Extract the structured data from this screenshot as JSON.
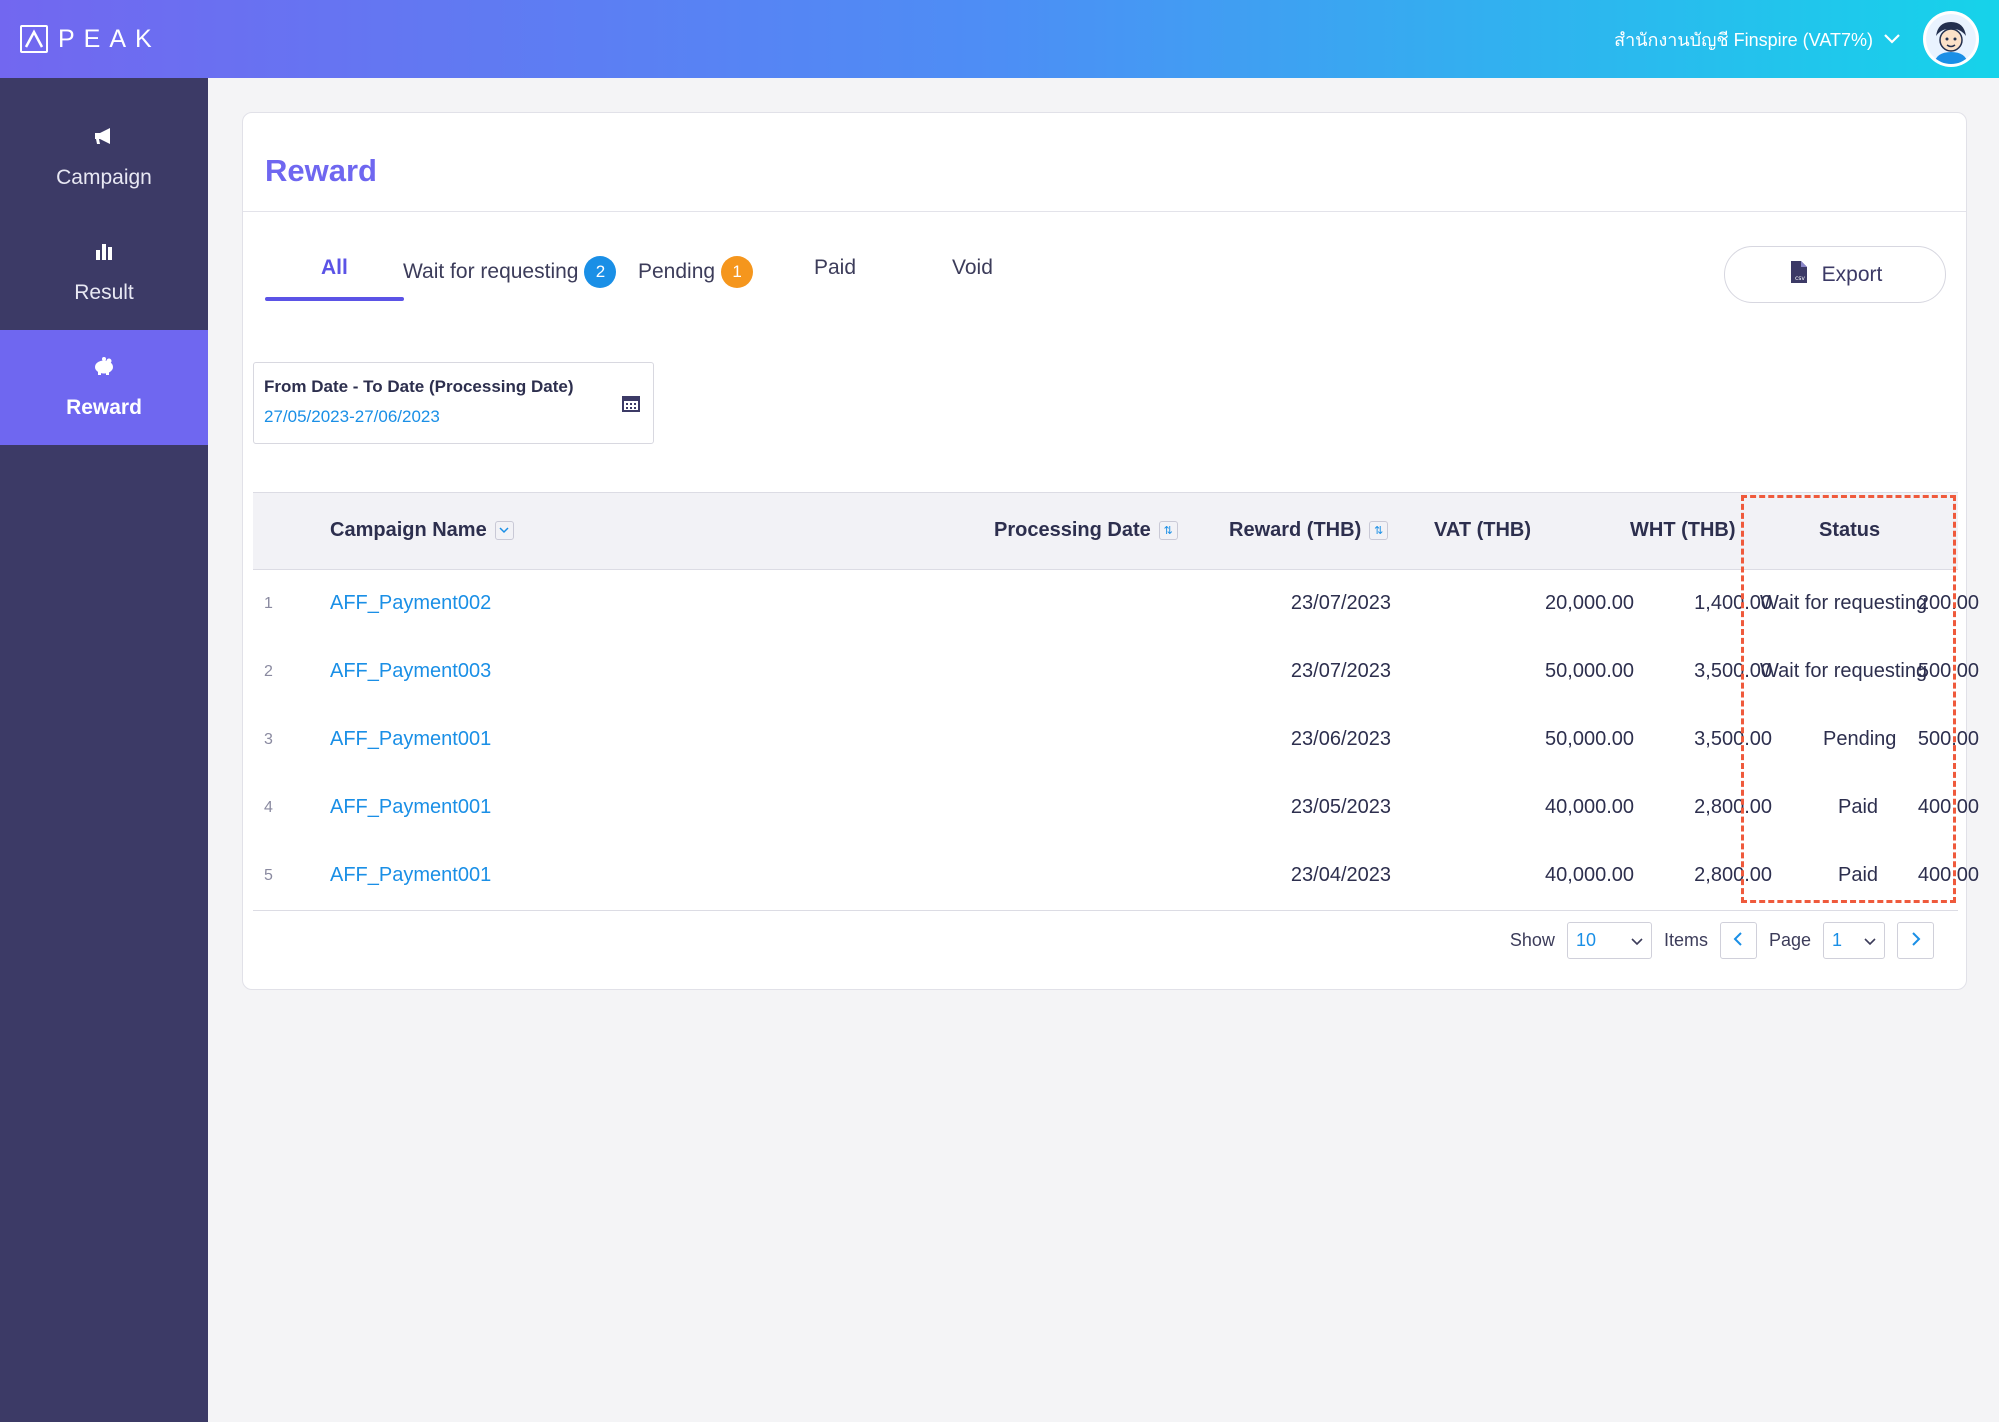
{
  "app": {
    "logo_text": "PEAK"
  },
  "header": {
    "company": "สำนักงานบัญชี Finspire (VAT7%)"
  },
  "sidebar": {
    "items": [
      {
        "label": "Campaign",
        "icon": "megaphone-icon"
      },
      {
        "label": "Result",
        "icon": "bar-chart-icon"
      },
      {
        "label": "Reward",
        "icon": "piggy-bank-icon",
        "active": true
      }
    ]
  },
  "page": {
    "title": "Reward"
  },
  "tabs": [
    {
      "label": "All",
      "active": true
    },
    {
      "label": "Wait for requesting",
      "badge": "2"
    },
    {
      "label": "Pending",
      "badge": "1"
    },
    {
      "label": "Paid"
    },
    {
      "label": "Void"
    }
  ],
  "export": {
    "label": "Export",
    "icon": "csv-file-icon"
  },
  "date_filter": {
    "label": "From Date - To Date (Processing Date)",
    "value": "27/05/2023-27/06/2023"
  },
  "table": {
    "headers": {
      "campaign": "Campaign Name",
      "processing_date": "Processing Date",
      "reward": "Reward (THB)",
      "vat": "VAT (THB)",
      "wht": "WHT (THB)",
      "status": "Status"
    },
    "rows": [
      {
        "no": "1",
        "campaign": "AFF_Payment002",
        "date": "23/07/2023",
        "reward": "20,000.00",
        "vat": "1,400.00",
        "wht": "200.00",
        "status": "Wait for requesting"
      },
      {
        "no": "2",
        "campaign": "AFF_Payment003",
        "date": "23/07/2023",
        "reward": "50,000.00",
        "vat": "3,500.00",
        "wht": "500.00",
        "status": "Wait for requesting"
      },
      {
        "no": "3",
        "campaign": "AFF_Payment001",
        "date": "23/06/2023",
        "reward": "50,000.00",
        "vat": "3,500.00",
        "wht": "500.00",
        "status": "Pending"
      },
      {
        "no": "4",
        "campaign": "AFF_Payment001",
        "date": "23/05/2023",
        "reward": "40,000.00",
        "vat": "2,800.00",
        "wht": "400.00",
        "status": "Paid"
      },
      {
        "no": "5",
        "campaign": "AFF_Payment001",
        "date": "23/04/2023",
        "reward": "40,000.00",
        "vat": "2,800.00",
        "wht": "400.00",
        "status": "Paid"
      }
    ]
  },
  "pagination": {
    "show_label": "Show",
    "page_size": "10",
    "items_label": "Items",
    "page_label": "Page",
    "page": "1"
  },
  "colors": {
    "accent": "#6f67f0",
    "sidebar_bg": "#3c3a66",
    "link": "#1a8fe6",
    "badge_blue": "#1a8fe6",
    "badge_orange": "#f5961d",
    "highlight": "#ef5a3c"
  }
}
